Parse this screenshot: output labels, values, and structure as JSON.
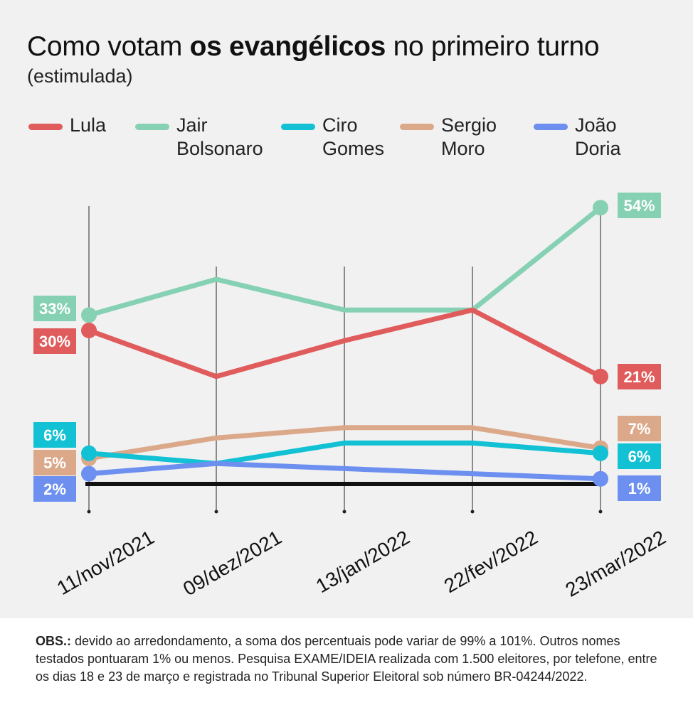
{
  "title": {
    "prefix": "Como votam ",
    "bold": "os evangélicos",
    "suffix": " no primeiro turno"
  },
  "subtitle": "(estimulada)",
  "legend": [
    {
      "name": "Lula",
      "color": "#e05b5b"
    },
    {
      "name": "Jair\nBolsonaro",
      "color": "#86d1b4"
    },
    {
      "name": "Ciro\nGomes",
      "color": "#12c1d3"
    },
    {
      "name": "Sergio\nMoro",
      "color": "#dba98a"
    },
    {
      "name": "João\nDoria",
      "color": "#6c8ff0"
    }
  ],
  "chart_data": {
    "type": "line",
    "title": "Como votam os evangélicos no primeiro turno (estimulada)",
    "categories": [
      "11/nov/2021",
      "09/dez/2021",
      "13/jan/2022",
      "22/fev/2022",
      "23/mar/2022"
    ],
    "ylim": [
      0,
      60
    ],
    "series": [
      {
        "name": "Jair Bolsonaro",
        "color": "#86d1b4",
        "values": [
          33,
          40,
          34,
          34,
          54
        ],
        "start_label": "33%",
        "end_label": "54%"
      },
      {
        "name": "Lula",
        "color": "#e05b5b",
        "values": [
          30,
          21,
          28,
          34,
          21
        ],
        "start_label": "30%",
        "end_label": "21%"
      },
      {
        "name": "Sergio Moro",
        "color": "#dba98a",
        "values": [
          5,
          9,
          11,
          11,
          7
        ],
        "start_label": "5%",
        "end_label": "7%"
      },
      {
        "name": "Ciro Gomes",
        "color": "#12c1d3",
        "values": [
          6,
          4,
          8,
          8,
          6
        ],
        "start_label": "6%",
        "end_label": "6%"
      },
      {
        "name": "João Doria",
        "color": "#6c8ff0",
        "values": [
          2,
          4,
          3,
          2,
          1
        ],
        "start_label": "2%",
        "end_label": "1%"
      }
    ]
  },
  "note": {
    "bold": "OBS.:",
    "text": " devido ao arredondamento, a soma dos percentuais pode variar de 99% a 101%. Outros nomes testados pontuaram 1% ou menos. Pesquisa EXAME/IDEIA realizada com 1.500 eleitores, por telefone, entre os dias 18 e 23 de março e registrada no Tribunal Superior Eleitoral sob número BR-04244/2022."
  }
}
